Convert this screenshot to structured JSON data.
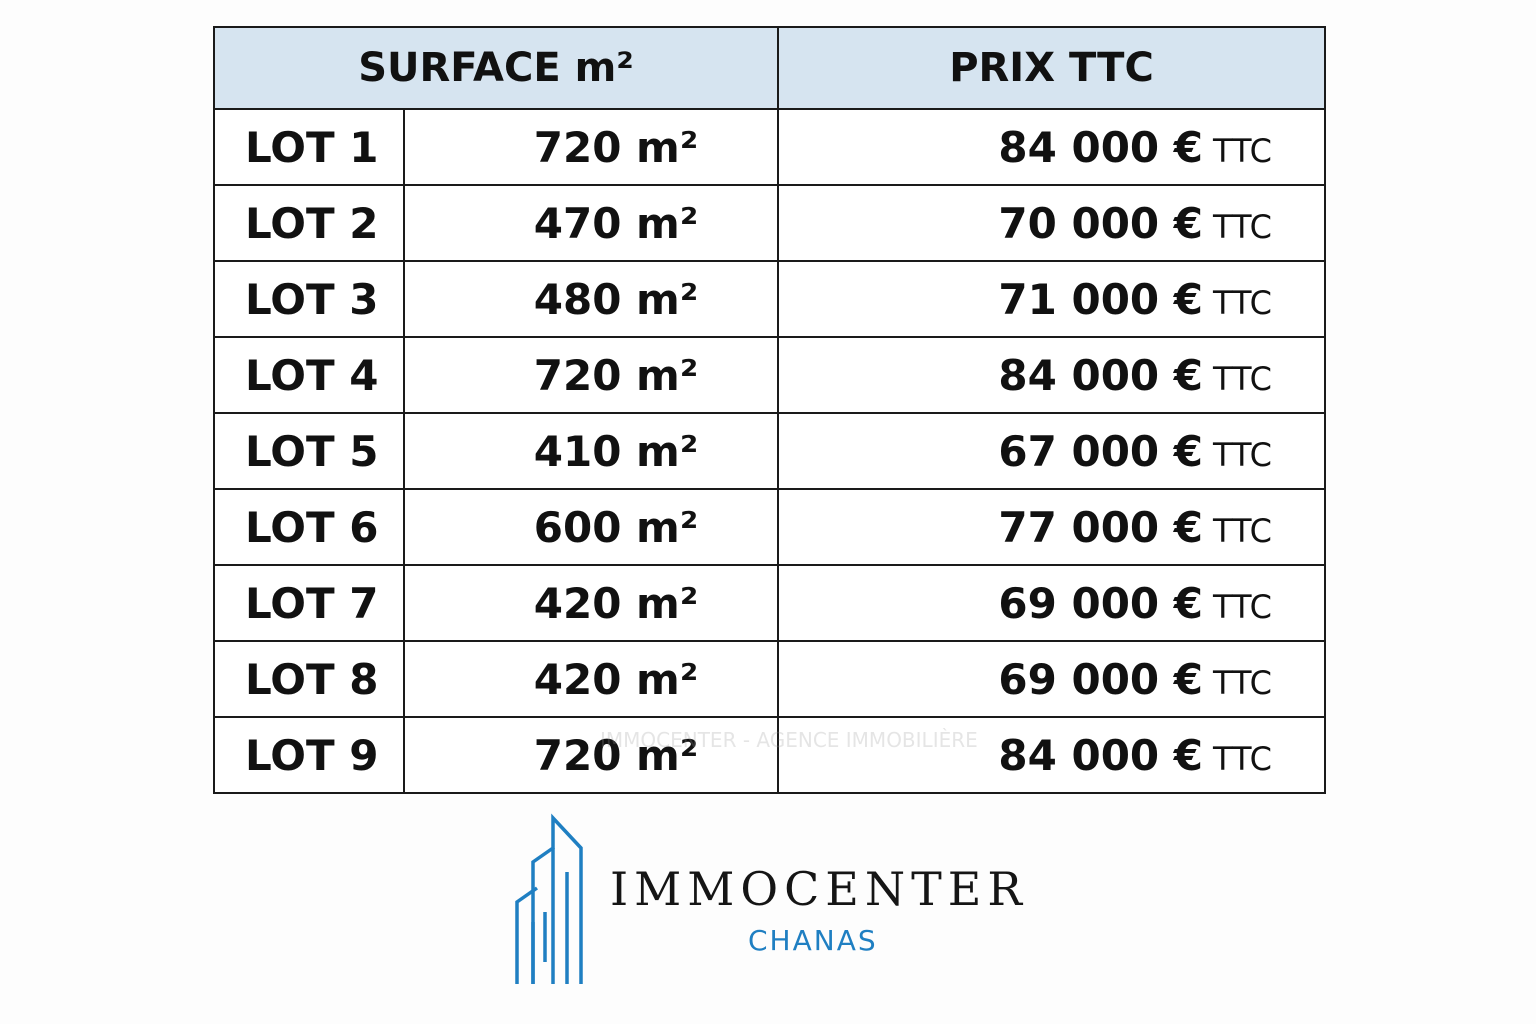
{
  "table": {
    "header": [
      "SURFACE m²",
      "PRIX TTC"
    ],
    "rows": [
      {
        "lot": "LOT 1",
        "surface": "720 m²",
        "price": "84 000 €",
        "suffix": "TTC"
      },
      {
        "lot": "LOT 2",
        "surface": "470 m²",
        "price": "70 000 €",
        "suffix": "TTC"
      },
      {
        "lot": "LOT 3",
        "surface": "480 m²",
        "price": "71 000 €",
        "suffix": "TTC"
      },
      {
        "lot": "LOT 4",
        "surface": "720 m²",
        "price": "84 000 €",
        "suffix": "TTC"
      },
      {
        "lot": "LOT 5",
        "surface": "410 m²",
        "price": "67 000 €",
        "suffix": "TTC"
      },
      {
        "lot": "LOT 6",
        "surface": "600 m²",
        "price": "77 000 €",
        "suffix": "TTC"
      },
      {
        "lot": "LOT 7",
        "surface": "420 m²",
        "price": "69 000 €",
        "suffix": "TTC"
      },
      {
        "lot": "LOT 8",
        "surface": "420 m²",
        "price": "69 000 €",
        "suffix": "TTC"
      },
      {
        "lot": "LOT 9",
        "surface": "720 m²",
        "price": "84 000 €",
        "suffix": "TTC"
      }
    ]
  },
  "watermark": "IMMOCENTER - AGENCE IMMOBILIÈRE",
  "logo": {
    "name": "IMMOCENTER",
    "city": "CHANAS"
  }
}
